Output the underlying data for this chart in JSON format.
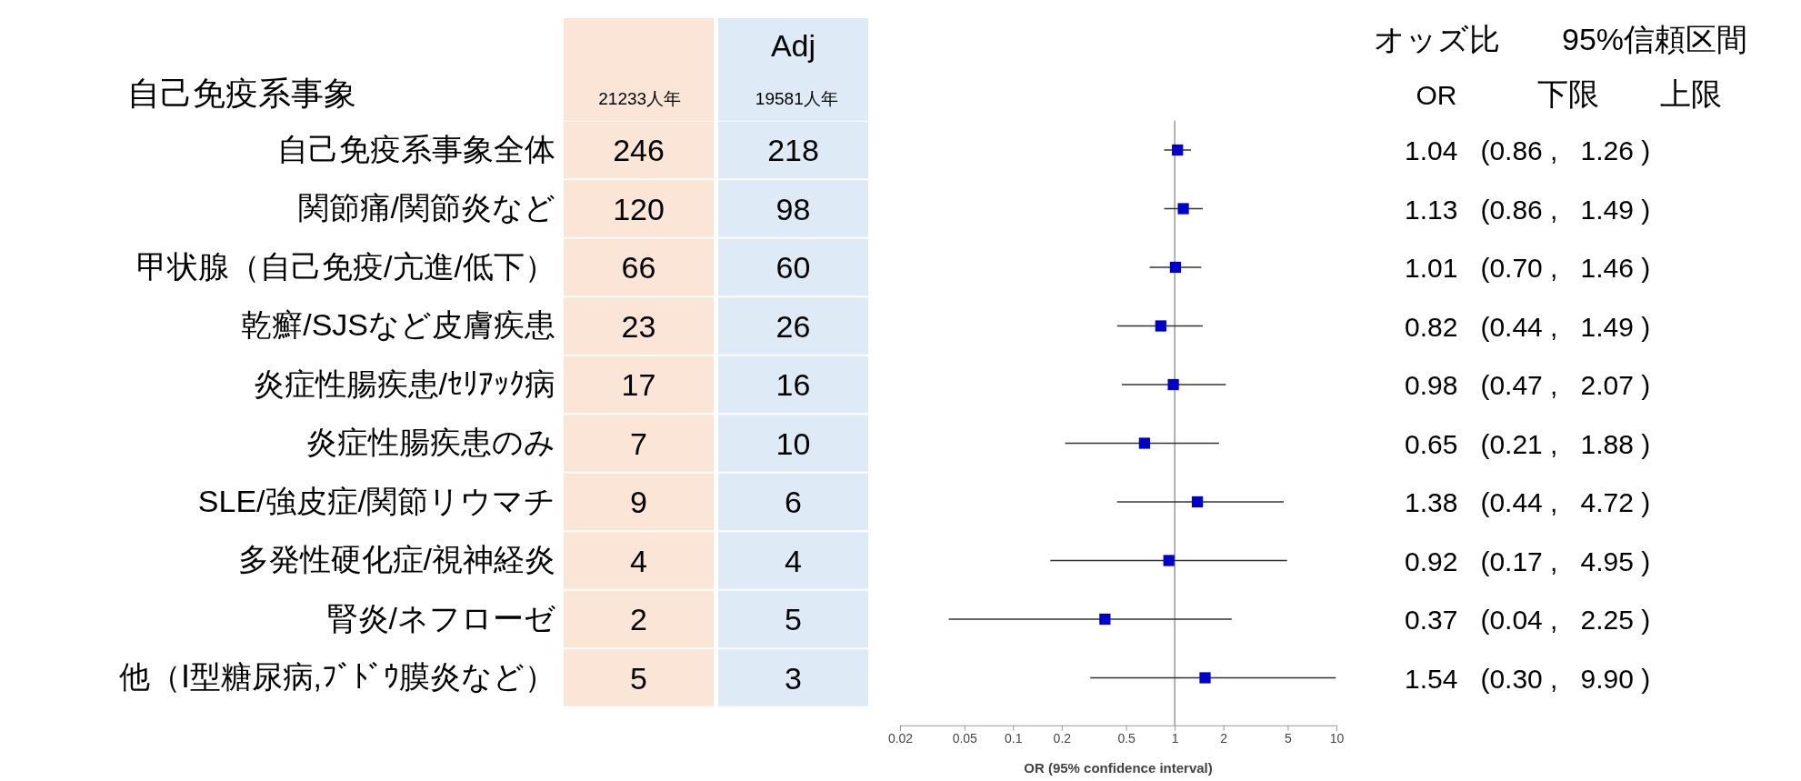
{
  "chart_data": [
    {
      "type": "heatmap",
      "categories": [
        "21233人年",
        "19581人年"
      ],
      "colors": [
        "#fbe5d6",
        "#deebf7"
      ],
      "annotations": [
        "Adj"
      ],
      "data_labels": true,
      "y_categories": [
        "自己免疫系事象全体",
        "関節痛/関節炎など",
        "甲状腺（自己免疫/亢進/低下）",
        "乾癬/SJSなど皮膚疾患",
        "炎症性腸疾患/ｾﾘｱｯｸ病",
        "炎症性腸疾患のみ",
        "SLE/強皮症/関節リウマチ",
        "多発性硬化症/視神経炎",
        "腎炎/ネフローゼ",
        "他（Ⅰ型糖尿病,ﾌﾞﾄﾞｳ膜炎など）"
      ],
      "cells": [
        [
          246,
          218
        ],
        [
          120,
          98
        ],
        [
          66,
          60
        ],
        [
          23,
          26
        ],
        [
          17,
          16
        ],
        [
          7,
          10
        ],
        [
          9,
          6
        ],
        [
          4,
          4
        ],
        [
          2,
          5
        ],
        [
          5,
          3
        ]
      ]
    },
    {
      "type": "scatter",
      "orientation": "horizontal",
      "log": "x",
      "marker": "square",
      "color": "#0000cc",
      "tick_labels": "x",
      "value_labels": [
        "1.04   (0.86 ,   1.26 )",
        "1.13   (0.86 ,   1.49 )",
        "1.01   (0.70 ,   1.46 )",
        "0.82   (0.44 ,   1.49 )",
        "0.98   (0.47 ,   2.07 )",
        "0.65   (0.21 ,   1.88 )",
        "1.38   (0.44 ,   4.72 )",
        "0.92   (0.17 ,   4.95 )",
        "0.37   (0.04 ,   2.25 )",
        "1.54   (0.30 ,   9.90 )"
      ],
      "xlabel": "OR (95% confidence interval)",
      "ylabel": "自己免疫系事象",
      "annotations": [
        "オッズ比",
        "95%信頼区間",
        "OR",
        "下限",
        "上限"
      ],
      "categories": [
        null,
        null,
        null,
        null,
        null,
        null,
        null,
        null,
        null,
        null
      ],
      "values": [
        1.04,
        1.13,
        1.01,
        0.82,
        0.98,
        0.65,
        1.38,
        0.92,
        0.37,
        1.54
      ],
      "errors": [
        [
          0.86,
          1.26
        ],
        [
          0.86,
          1.49
        ],
        [
          0.7,
          1.46
        ],
        [
          0.44,
          1.49
        ],
        [
          0.47,
          2.07
        ],
        [
          0.21,
          1.88
        ],
        [
          0.44,
          4.72
        ],
        [
          0.17,
          4.95
        ],
        [
          0.04,
          2.25
        ],
        [
          0.3,
          9.9
        ]
      ],
      "xlim": [
        0.02,
        10
      ],
      "xticks": [
        0.02,
        0.05,
        0.1,
        0.2,
        0.5,
        1,
        2,
        5,
        10
      ],
      "ref_lines": [
        {
          "axis": "x",
          "value": 1,
          "color": "#999999"
        }
      ]
    }
  ]
}
